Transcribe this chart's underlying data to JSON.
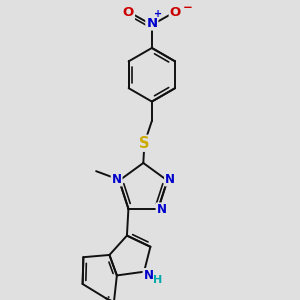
{
  "bg_color": "#e0e0e0",
  "bond_color": "#111111",
  "bond_lw": 1.4,
  "atom_colors": {
    "N": "#0000cc",
    "O": "#cc0000",
    "S": "#ccaa00",
    "NH": "#00aaaa",
    "C": "#111111"
  },
  "font_size": 8.5,
  "dbo": 0.09,
  "trim": 0.13,
  "xlim": [
    2.5,
    7.5
  ],
  "ylim": [
    1.5,
    9.5
  ]
}
